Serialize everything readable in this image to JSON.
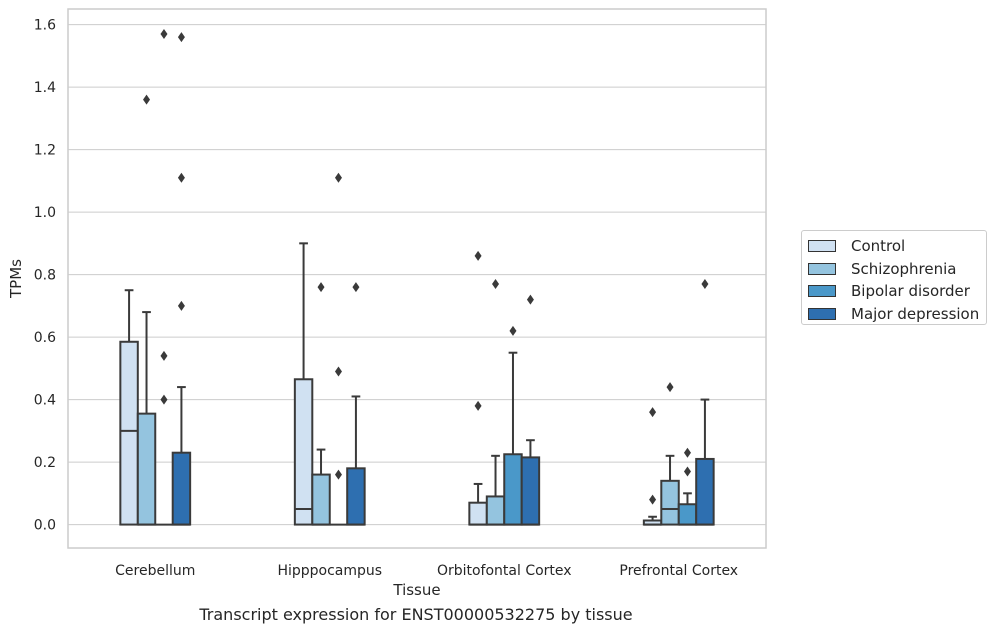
{
  "chart_data": {
    "type": "box",
    "title": "",
    "caption": "Transcript expression for ENST00000532275 by tissue",
    "xlabel": "Tissue",
    "ylabel": "TPMs",
    "ylim": [
      -0.075,
      1.65
    ],
    "yticks": [
      0.0,
      0.2,
      0.4,
      0.6,
      0.8,
      1.0,
      1.2,
      1.4,
      1.6
    ],
    "ytick_labels": [
      "0.0",
      "0.2",
      "0.4",
      "0.6",
      "0.8",
      "1.0",
      "1.2",
      "1.4",
      "1.6"
    ],
    "grid": "horizontal",
    "legend_position": "right",
    "categories": [
      "Cerebellum",
      "Hipppocampus",
      "Orbitofontal Cortex",
      "Prefrontal Cortex"
    ],
    "series": [
      {
        "name": "Control",
        "color": "#d0e1f2",
        "boxes": [
          {
            "q1": 0.0,
            "median": 0.3,
            "q3": 0.585,
            "whislo": 0.0,
            "whishi": 0.75,
            "fliers": []
          },
          {
            "q1": 0.0,
            "median": 0.05,
            "q3": 0.465,
            "whislo": 0.0,
            "whishi": 0.9,
            "fliers": []
          },
          {
            "q1": 0.0,
            "median": 0.0,
            "q3": 0.07,
            "whislo": 0.0,
            "whishi": 0.13,
            "fliers": [
              0.38,
              0.86
            ]
          },
          {
            "q1": 0.0,
            "median": 0.0,
            "q3": 0.013,
            "whislo": 0.0,
            "whishi": 0.025,
            "fliers": [
              0.08,
              0.36
            ]
          }
        ]
      },
      {
        "name": "Schizophrenia",
        "color": "#94c4df",
        "boxes": [
          {
            "q1": 0.0,
            "median": 0.0,
            "q3": 0.355,
            "whislo": 0.0,
            "whishi": 0.68,
            "fliers": [
              1.36
            ]
          },
          {
            "q1": 0.0,
            "median": 0.0,
            "q3": 0.16,
            "whislo": 0.0,
            "whishi": 0.24,
            "fliers": [
              0.76
            ]
          },
          {
            "q1": 0.0,
            "median": 0.0,
            "q3": 0.09,
            "whislo": 0.0,
            "whishi": 0.22,
            "fliers": [
              0.77
            ]
          },
          {
            "q1": 0.0,
            "median": 0.05,
            "q3": 0.14,
            "whislo": 0.0,
            "whishi": 0.22,
            "fliers": [
              0.44
            ]
          }
        ]
      },
      {
        "name": "Bipolar disorder",
        "color": "#4a98c9",
        "boxes": [
          {
            "q1": 0.0,
            "median": 0.0,
            "q3": 0.0,
            "whislo": 0.0,
            "whishi": 0.0,
            "fliers": [
              0.4,
              0.54,
              1.57
            ]
          },
          {
            "q1": 0.0,
            "median": 0.0,
            "q3": 0.0,
            "whislo": 0.0,
            "whishi": 0.0,
            "fliers": [
              0.16,
              0.49,
              1.11
            ]
          },
          {
            "q1": 0.0,
            "median": 0.0,
            "q3": 0.225,
            "whislo": 0.0,
            "whishi": 0.55,
            "fliers": [
              0.62
            ]
          },
          {
            "q1": 0.0,
            "median": 0.0,
            "q3": 0.065,
            "whislo": 0.0,
            "whishi": 0.1,
            "fliers": [
              0.17,
              0.23
            ]
          }
        ]
      },
      {
        "name": "Major depression",
        "color": "#2e6fb0",
        "boxes": [
          {
            "q1": 0.0,
            "median": 0.0,
            "q3": 0.23,
            "whislo": 0.0,
            "whishi": 0.44,
            "fliers": [
              0.7,
              1.11,
              1.56
            ]
          },
          {
            "q1": 0.0,
            "median": 0.0,
            "q3": 0.18,
            "whislo": 0.0,
            "whishi": 0.41,
            "fliers": [
              0.76
            ]
          },
          {
            "q1": 0.0,
            "median": 0.0,
            "q3": 0.215,
            "whislo": 0.0,
            "whishi": 0.27,
            "fliers": [
              0.72
            ]
          },
          {
            "q1": 0.0,
            "median": 0.0,
            "q3": 0.21,
            "whislo": 0.0,
            "whishi": 0.4,
            "fliers": [
              0.77
            ]
          }
        ]
      }
    ]
  }
}
